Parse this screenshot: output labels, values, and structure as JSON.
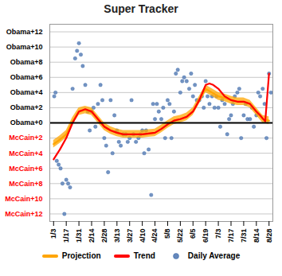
{
  "chart_data": {
    "type": "line",
    "title": "Super Tracker",
    "xlim": [
      -0.3,
      17.3
    ],
    "xticks": [
      {
        "value": 0,
        "label": "1/3"
      },
      {
        "value": 1,
        "label": "1/17"
      },
      {
        "value": 2,
        "label": "1/31"
      },
      {
        "value": 3,
        "label": "2/14"
      },
      {
        "value": 4,
        "label": "2/28"
      },
      {
        "value": 5,
        "label": "3/13"
      },
      {
        "value": 6,
        "label": "3/27"
      },
      {
        "value": 7,
        "label": "4/10"
      },
      {
        "value": 8,
        "label": "4/24"
      },
      {
        "value": 9,
        "label": "5/8"
      },
      {
        "value": 10,
        "label": "5/22"
      },
      {
        "value": 11,
        "label": "6/5"
      },
      {
        "value": 12,
        "label": "6/19"
      },
      {
        "value": 13,
        "label": "7/3"
      },
      {
        "value": 14,
        "label": "7/17"
      },
      {
        "value": 15,
        "label": "7/31"
      },
      {
        "value": 16,
        "label": "8/14"
      },
      {
        "value": 17,
        "label": "8/28"
      }
    ],
    "ylim": [
      -13,
      13
    ],
    "yticks": [
      {
        "value": 12,
        "label": "Obama+12"
      },
      {
        "value": 10,
        "label": "Obama+10"
      },
      {
        "value": 8,
        "label": "Obama+8"
      },
      {
        "value": 6,
        "label": "Obama+6"
      },
      {
        "value": 4,
        "label": "Obama+4"
      },
      {
        "value": 2,
        "label": "Obama+2"
      },
      {
        "value": 0,
        "label": "Obama+0"
      },
      {
        "value": -2,
        "label": "McCain+2"
      },
      {
        "value": -4,
        "label": "McCain+4"
      },
      {
        "value": -6,
        "label": "McCain+6"
      },
      {
        "value": -8,
        "label": "McCain+8"
      },
      {
        "value": -10,
        "label": "McCain+10"
      },
      {
        "value": -12,
        "label": "McCain+12"
      }
    ],
    "grid": true,
    "legend": "bottom",
    "series": [
      {
        "name": "Projection",
        "type": "line",
        "color": "#FFA500",
        "x": [
          0,
          0.5,
          1.0,
          1.5,
          2.0,
          2.5,
          3.0,
          3.5,
          4.0,
          4.5,
          5.0,
          5.5,
          6.0,
          6.5,
          7.0,
          7.5,
          8.0,
          8.5,
          9.0,
          9.5,
          10.0,
          10.5,
          11.0,
          11.5,
          12.0,
          12.5,
          13.0,
          13.5,
          14.0,
          14.5,
          15.0,
          15.5,
          16.0,
          16.5,
          17.0
        ],
        "values": [
          -2.8,
          -2.2,
          -1.5,
          0.2,
          1.5,
          1.7,
          1.5,
          0.5,
          -0.5,
          -1.0,
          -1.3,
          -1.5,
          -1.5,
          -1.5,
          -1.5,
          -1.4,
          -1.3,
          -0.8,
          -0.2,
          0.3,
          0.5,
          0.8,
          1.5,
          3.0,
          4.5,
          4.0,
          3.5,
          3.3,
          3.0,
          2.8,
          2.8,
          2.5,
          1.5,
          0.5,
          0.3
        ],
        "upper": [
          -2.3,
          -1.7,
          -1.0,
          0.7,
          2.0,
          2.2,
          2.0,
          1.0,
          0.0,
          -0.5,
          -0.8,
          -1.0,
          -1.0,
          -1.0,
          -1.0,
          -0.9,
          -0.8,
          -0.3,
          0.3,
          0.8,
          1.0,
          1.3,
          2.0,
          3.5,
          5.0,
          4.5,
          4.0,
          3.8,
          3.5,
          3.3,
          3.3,
          3.0,
          2.0,
          1.0,
          0.8
        ],
        "lower": [
          -3.3,
          -2.7,
          -2.0,
          -0.3,
          1.0,
          1.2,
          1.0,
          0.0,
          -1.0,
          -1.5,
          -1.8,
          -2.0,
          -2.0,
          -2.0,
          -2.0,
          -1.9,
          -1.8,
          -1.3,
          -0.7,
          -0.2,
          0.0,
          0.3,
          1.0,
          2.5,
          4.0,
          3.5,
          3.0,
          2.8,
          2.5,
          2.3,
          2.3,
          2.0,
          1.0,
          0.0,
          -0.2
        ]
      },
      {
        "name": "Trend",
        "type": "line",
        "color": "#FF0000",
        "x": [
          0,
          0.5,
          1.0,
          1.5,
          2.0,
          2.5,
          3.0,
          3.5,
          4.0,
          4.5,
          5.0,
          5.5,
          6.0,
          6.5,
          7.0,
          7.5,
          8.0,
          8.5,
          9.0,
          9.5,
          10.0,
          10.5,
          11.0,
          11.5,
          12.0,
          12.3,
          12.6,
          13.0,
          13.5,
          14.0,
          14.5,
          15.0,
          15.5,
          16.0,
          16.3,
          16.7,
          17.0
        ],
        "values": [
          -4.8,
          -3.5,
          -2.0,
          0.0,
          1.5,
          1.8,
          1.5,
          0.5,
          -0.5,
          -1.0,
          -1.3,
          -1.5,
          -1.5,
          -1.5,
          -1.5,
          -1.4,
          -1.3,
          -0.8,
          -0.2,
          0.3,
          0.5,
          0.8,
          1.5,
          3.0,
          5.0,
          5.2,
          5.0,
          4.5,
          3.5,
          3.0,
          2.8,
          2.8,
          2.5,
          1.5,
          1.0,
          0.2,
          6.5
        ]
      },
      {
        "name": "Daily Average",
        "type": "scatter",
        "color": "#6688BB",
        "x": [
          0.05,
          0.15,
          0.25,
          0.4,
          0.55,
          0.7,
          0.85,
          1.0,
          1.15,
          1.3,
          1.5,
          1.7,
          1.85,
          2.0,
          2.15,
          2.3,
          2.5,
          2.7,
          2.85,
          3.0,
          3.15,
          3.3,
          3.5,
          3.7,
          3.85,
          4.0,
          4.15,
          4.3,
          4.5,
          4.65,
          4.8,
          5.0,
          5.15,
          5.3,
          5.5,
          5.7,
          5.85,
          6.0,
          6.15,
          6.3,
          6.5,
          6.7,
          6.85,
          7.0,
          7.15,
          7.3,
          7.5,
          7.7,
          7.85,
          8.0,
          8.15,
          8.3,
          8.5,
          8.65,
          8.8,
          9.0,
          9.15,
          9.3,
          9.5,
          9.65,
          9.8,
          10.0,
          10.15,
          10.3,
          10.5,
          10.7,
          10.85,
          11.0,
          11.15,
          11.3,
          11.5,
          11.7,
          11.85,
          12.0,
          12.15,
          12.3,
          12.5,
          12.7,
          12.85,
          13.0,
          13.15,
          13.3,
          13.5,
          13.7,
          13.85,
          14.0,
          14.15,
          14.3,
          14.5,
          14.65,
          14.8,
          15.0,
          15.15,
          15.3,
          15.5,
          15.65,
          15.8,
          16.0,
          16.15,
          16.3,
          16.5,
          16.65,
          16.8,
          17.0,
          17.15
        ],
        "values": [
          3.5,
          4.0,
          -5.0,
          -5.5,
          -6.0,
          -8.0,
          -12.0,
          -7.5,
          -8.0,
          -8.5,
          4.5,
          8.5,
          9.5,
          10.5,
          9.0,
          7.5,
          5.0,
          1.5,
          -1.0,
          1.5,
          2.0,
          -0.5,
          2.5,
          5.0,
          3.0,
          -2.0,
          -3.0,
          -6.5,
          3.0,
          -4.0,
          1.0,
          -1.0,
          -2.5,
          -3.0,
          -1.5,
          -1.5,
          -2.5,
          -2.0,
          3.0,
          -1.5,
          -2.5,
          -2.0,
          -1.5,
          -1.0,
          -4.0,
          -1.0,
          -3.5,
          -9.5,
          2.5,
          0.5,
          2.5,
          1.5,
          0.5,
          2.0,
          -2.0,
          3.0,
          2.5,
          -2.0,
          1.5,
          6.5,
          7.0,
          4.0,
          5.5,
          6.0,
          5.5,
          4.5,
          6.5,
          3.5,
          5.0,
          3.0,
          3.0,
          3.5,
          2.0,
          5.5,
          3.5,
          2.5,
          3.5,
          2.0,
          3.5,
          2.0,
          -0.5,
          3.0,
          2.5,
          -1.5,
          0.5,
          1.0,
          2.5,
          3.5,
          4.0,
          4.5,
          -2.0,
          1.0,
          2.5,
          0.5,
          0.5,
          2.0,
          -0.5,
          1.0,
          4.0,
          3.5,
          4.5,
          2.5,
          -2.0,
          6.5,
          4.0
        ]
      }
    ]
  }
}
